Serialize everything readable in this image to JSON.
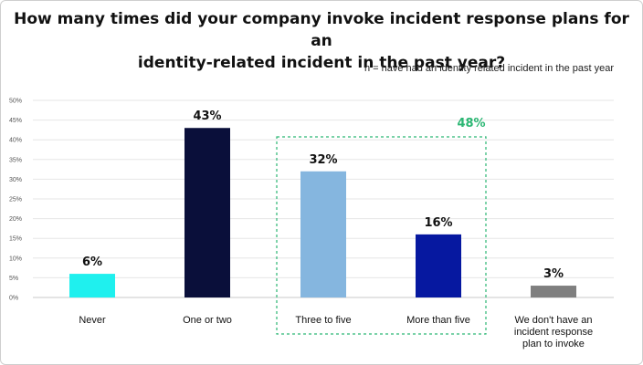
{
  "title_lines": [
    "How many times did your company invoke incident response plans for an",
    "identity-related incident in the past year?"
  ],
  "note": "n = have had an identity related incident in the past year",
  "chart_data": {
    "type": "bar",
    "ylim": [
      0,
      50
    ],
    "yticks": [
      "0%",
      "5%",
      "10%",
      "15%",
      "20%",
      "25%",
      "30%",
      "35%",
      "40%",
      "45%",
      "50%"
    ],
    "grid": true,
    "categories": [
      [
        "Never"
      ],
      [
        "One or two"
      ],
      [
        "Three to five"
      ],
      [
        "More than five"
      ],
      [
        "We don't have an",
        "incident response",
        "plan to invoke"
      ]
    ],
    "values": [
      6,
      43,
      32,
      16,
      3
    ],
    "value_labels": [
      "6%",
      "43%",
      "32%",
      "16%",
      "3%"
    ],
    "colors": [
      "#1ff0ee",
      "#0a0f3a",
      "#85b6df",
      "#0618a0",
      "#7f7f7f"
    ],
    "highlight": {
      "label": "48%",
      "categories": [
        "Three to five",
        "More than five"
      ],
      "color": "#2bb673"
    }
  }
}
